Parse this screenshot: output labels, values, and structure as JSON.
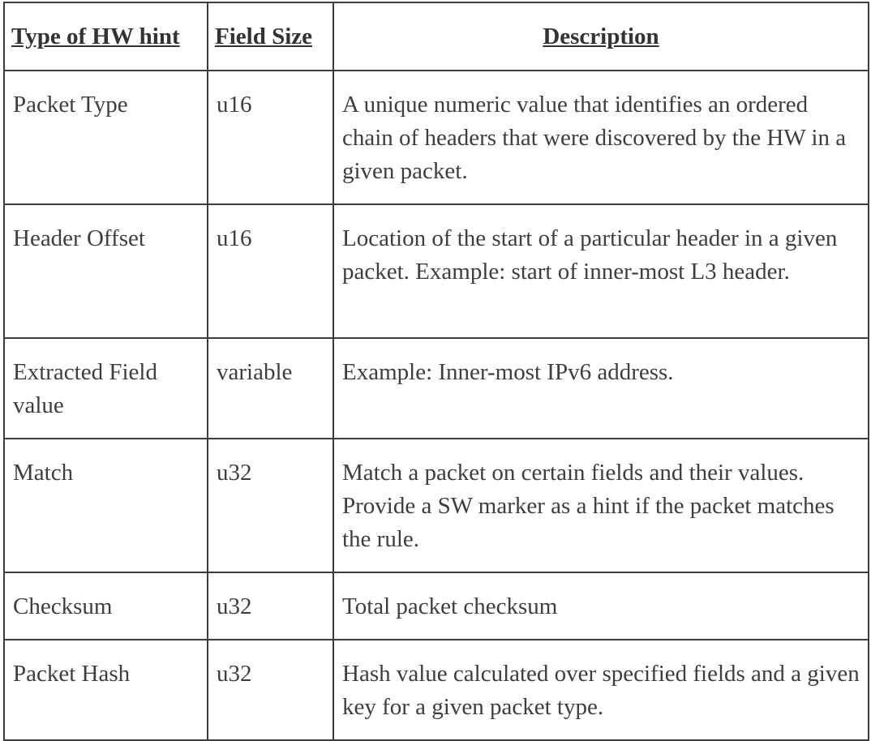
{
  "table": {
    "headers": [
      "Type of HW hint",
      "Field Size",
      "Description"
    ],
    "rows": [
      {
        "type": "Packet Type",
        "size": "u16",
        "description": "A unique numeric value that identifies an ordered chain of headers that were discovered by the HW in a given packet."
      },
      {
        "type": "Header Offset",
        "size": "u16",
        "description": "Location of the start of a particular header in a given packet. Example: start of inner-most L3 header."
      },
      {
        "type": "Extracted Field value",
        "size": "variable",
        "description": "Example: Inner-most IPv6 address."
      },
      {
        "type": "Match",
        "size": "u32",
        "description": "Match a packet on certain fields and their values. Provide a SW marker as a hint if the packet matches the rule."
      },
      {
        "type": "Checksum",
        "size": "u32",
        "description": "Total packet checksum"
      },
      {
        "type": "Packet Hash",
        "size": "u32",
        "description": "Hash value calculated over specified fields and a given key for a given packet type."
      }
    ]
  }
}
